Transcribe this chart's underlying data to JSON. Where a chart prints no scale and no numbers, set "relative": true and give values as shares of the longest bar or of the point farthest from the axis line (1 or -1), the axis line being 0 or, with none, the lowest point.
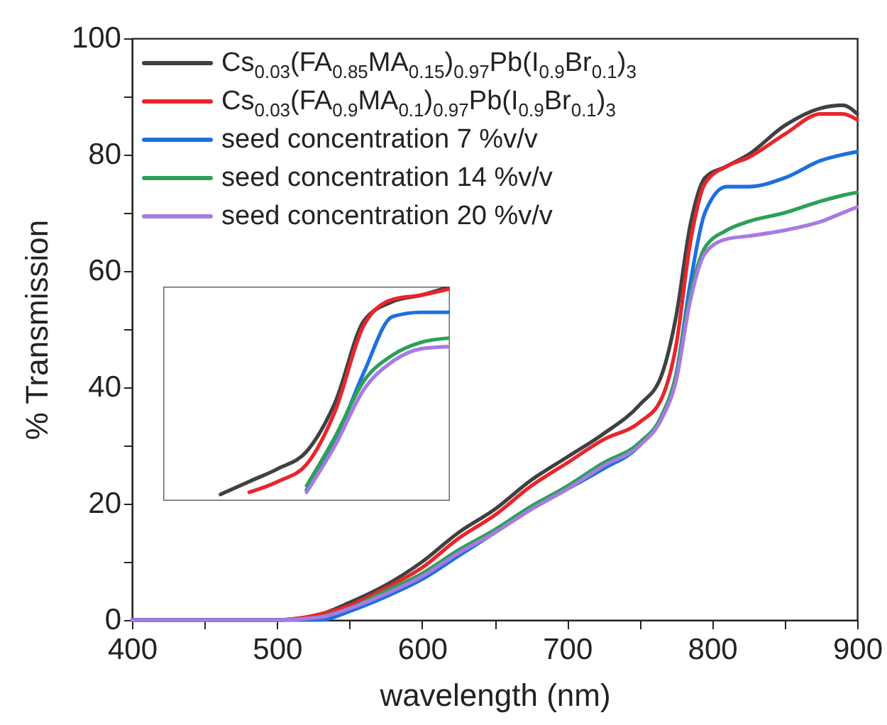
{
  "chart_data": [
    {
      "type": "line",
      "xlabel": "wavelength (nm)",
      "ylabel": "% Transmission",
      "x": [
        400,
        450,
        500,
        530,
        550,
        575,
        600,
        625,
        650,
        675,
        700,
        725,
        750,
        765,
        775,
        785,
        795,
        810,
        825,
        850,
        875,
        890,
        900
      ],
      "series": [
        {
          "name": "Cs$_{0.03}$(FA$_{0.85}$MA$_{0.15}$)$_{0.97}$Pb(I$_{0.9}$Br$_{0.1}$)$_{3}$",
          "color": "#404040",
          "values": [
            0,
            0,
            0,
            1,
            3,
            6,
            10,
            15,
            19,
            24,
            28,
            32,
            37,
            42,
            52,
            68,
            76,
            78,
            80,
            85,
            88,
            88.5,
            87
          ]
        },
        {
          "name": "Cs$_{0.03}$(FA$_{0.9}$MA$_{0.1}$)$_{0.97}$Pb(I$_{0.9}$Br$_{0.1}$)$_{3}$",
          "color": "#e8262b",
          "values": [
            0,
            0,
            0,
            1,
            2.5,
            5.5,
            9,
            14,
            18,
            23,
            27,
            31,
            34,
            38,
            47,
            65,
            75,
            78,
            79.5,
            83.5,
            87,
            87,
            86
          ]
        },
        {
          "name": "seed concentration 7 %v/v",
          "color": "#1f6fe0",
          "values": [
            0,
            0,
            0,
            0,
            1.5,
            4,
            7,
            11,
            15,
            19,
            22.5,
            26,
            30,
            35,
            42,
            58,
            70,
            74.5,
            74.5,
            76,
            79,
            80,
            80.5
          ]
        },
        {
          "name": "seed concentration 14 %v/v",
          "color": "#2ca05a",
          "values": [
            null,
            null,
            null,
            0.5,
            2,
            5,
            8,
            12,
            15.5,
            19.5,
            23,
            27,
            30.5,
            35,
            42,
            56,
            64,
            67,
            68.5,
            70,
            72,
            73,
            73.5
          ]
        },
        {
          "name": "seed concentration 20 %v/v",
          "color": "#a77be0",
          "values": [
            0,
            0,
            0,
            0.5,
            2,
            4.5,
            7.5,
            11.5,
            15,
            19,
            22.5,
            26.5,
            30,
            34.5,
            41,
            55,
            63,
            65.5,
            66,
            67,
            68.5,
            70,
            71
          ]
        }
      ],
      "xlim": [
        400,
        900
      ],
      "xticks": [
        400,
        {
          "value": 450,
          "label": null
        },
        500,
        {
          "value": 550,
          "label": null
        },
        600,
        {
          "value": 650,
          "label": null
        },
        700,
        {
          "value": 750,
          "label": null
        },
        800,
        {
          "value": 850,
          "label": null
        },
        900
      ],
      "ylim": [
        0,
        100
      ],
      "yticks": [
        0,
        {
          "value": 10,
          "label": null
        },
        20,
        {
          "value": 30,
          "label": null
        },
        40,
        {
          "value": 50,
          "label": null
        },
        60,
        {
          "value": 70,
          "label": null
        },
        80,
        {
          "value": 90,
          "label": null
        },
        100
      ],
      "legend": "top left"
    },
    {
      "type": "line",
      "relative": true,
      "categories": [
        null,
        null,
        null,
        null,
        null,
        null,
        null,
        null,
        null,
        null,
        null
      ],
      "series": [
        {
          "color": "#404040",
          "values": [
            null,
            null,
            0.03,
            0.09,
            0.15,
            0.23,
            0.46,
            0.84,
            0.93,
            0.96,
            1
          ]
        },
        {
          "color": "#e8262b",
          "values": [
            null,
            null,
            null,
            0.04,
            0.09,
            0.17,
            0.42,
            0.82,
            0.94,
            0.96,
            0.99
          ]
        },
        {
          "color": "#1f6fe0",
          "values": [
            null,
            null,
            null,
            null,
            null,
            0.05,
            0.28,
            0.6,
            0.86,
            0.88,
            0.88
          ]
        },
        {
          "color": "#2ca05a",
          "values": [
            null,
            null,
            null,
            null,
            null,
            0.07,
            0.3,
            0.56,
            0.68,
            0.74,
            0.76
          ]
        },
        {
          "color": "#a77be0",
          "values": [
            null,
            null,
            null,
            null,
            null,
            0.04,
            0.26,
            0.52,
            0.65,
            0.71,
            0.72
          ]
        }
      ]
    }
  ]
}
